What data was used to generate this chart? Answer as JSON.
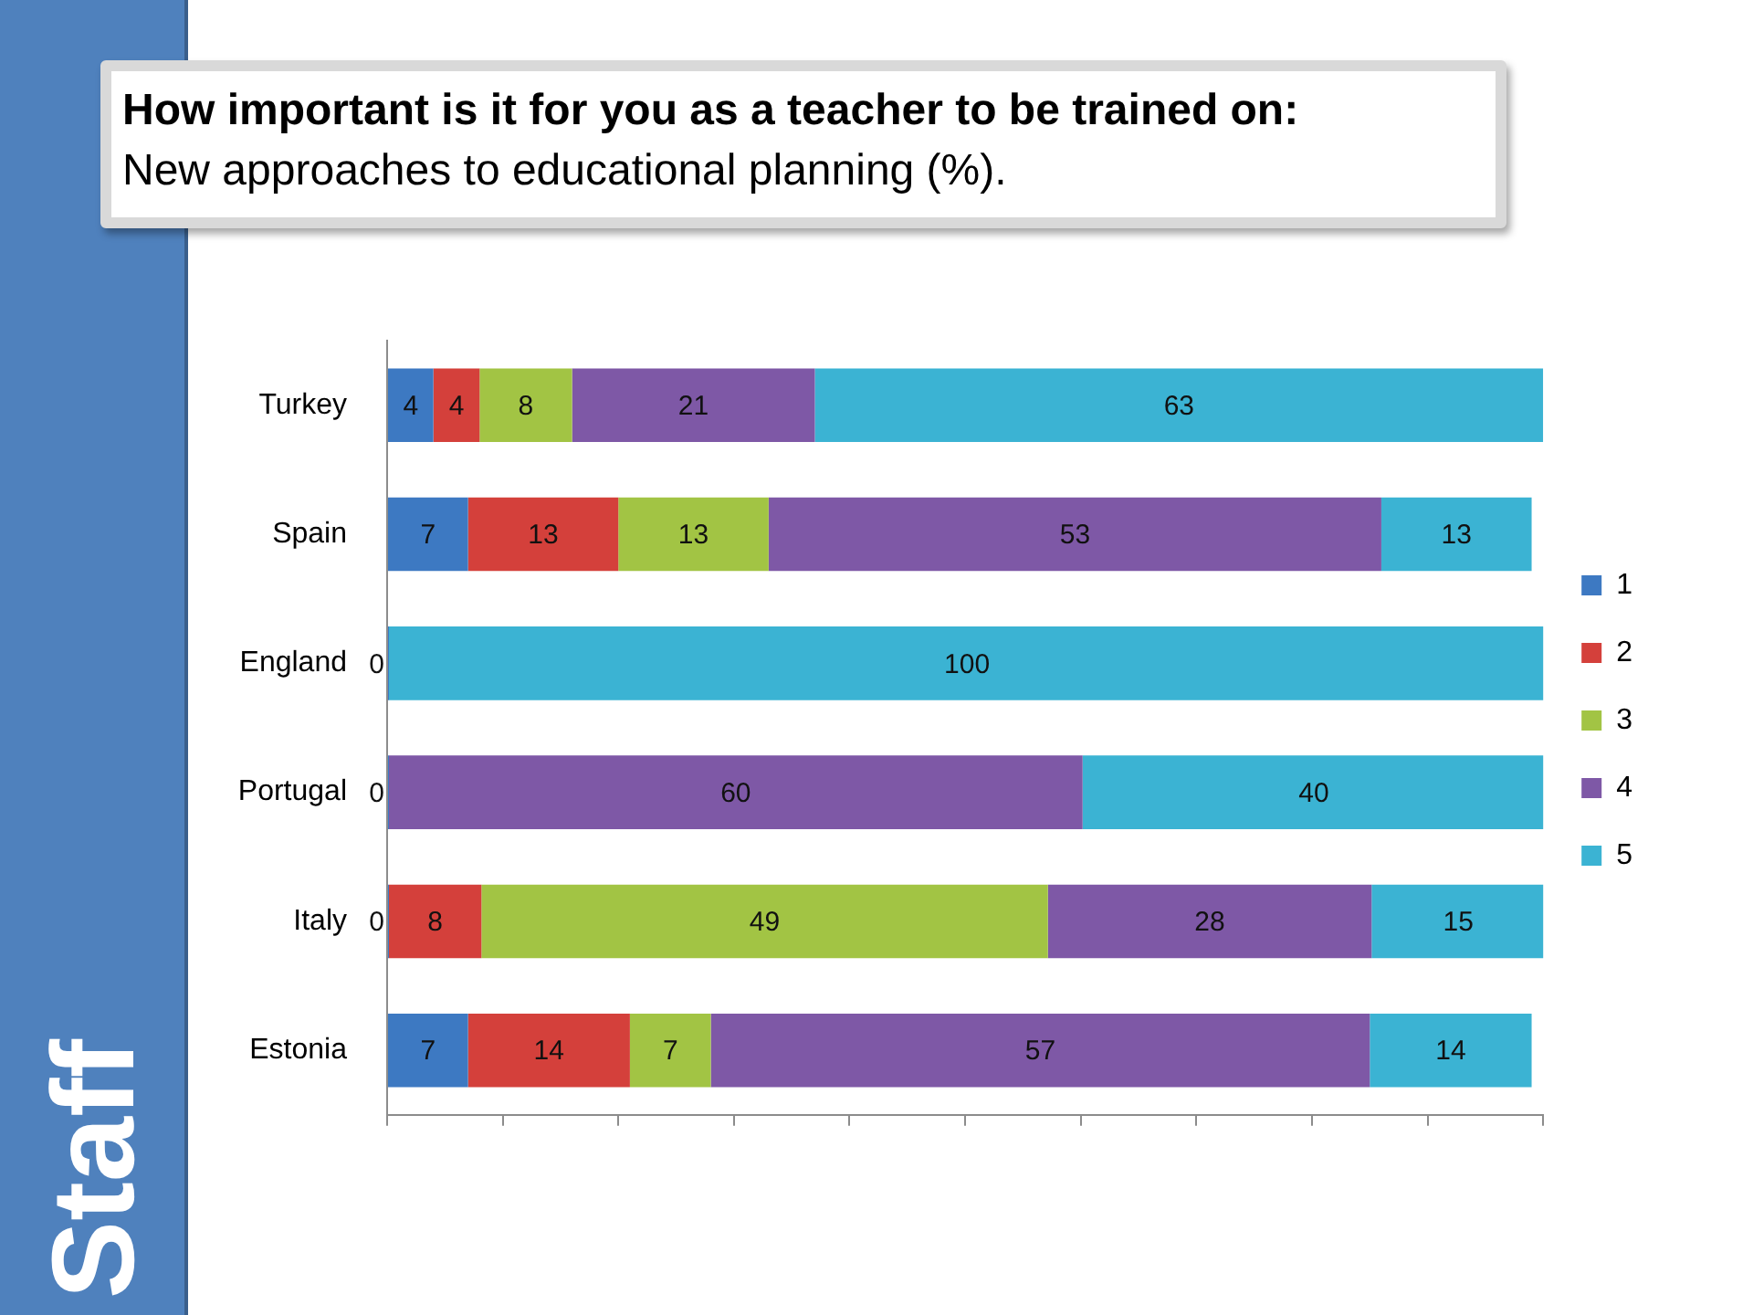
{
  "chart_data": {
    "type": "bar",
    "orientation": "horizontal",
    "stacked": true,
    "title": "How important is it for you as a teacher to be trained on:",
    "subtitle": "New approaches to educational planning (%).",
    "categories": [
      "Turkey",
      "Spain",
      "England",
      "Portugal",
      "Italy",
      "Estonia"
    ],
    "series": [
      {
        "name": "1",
        "color": "#3d79c2",
        "values": [
          4,
          7,
          0,
          0,
          0,
          7
        ],
        "value_labels": [
          "4",
          "7",
          "0",
          "0",
          "0",
          "7"
        ]
      },
      {
        "name": "2",
        "color": "#d4403b",
        "values": [
          4,
          13,
          0,
          0,
          8,
          14
        ],
        "value_labels": [
          "4",
          "13",
          null,
          null,
          "8",
          "14"
        ]
      },
      {
        "name": "3",
        "color": "#a2c444",
        "values": [
          8,
          13,
          0,
          0,
          49,
          7
        ],
        "value_labels": [
          "8",
          "13",
          null,
          null,
          "49",
          "7"
        ]
      },
      {
        "name": "4",
        "color": "#7e58a6",
        "values": [
          21,
          53,
          0,
          60,
          28,
          57
        ],
        "value_labels": [
          "21",
          "53",
          null,
          "60",
          "28",
          "57"
        ]
      },
      {
        "name": "5",
        "color": "#3bb3d3",
        "values": [
          63,
          13,
          100,
          40,
          15,
          14
        ],
        "value_labels": [
          "63",
          "13",
          "100",
          "40",
          "15",
          "14"
        ]
      }
    ],
    "xlim": [
      0,
      100
    ],
    "xticks": [
      {
        "value": 0,
        "label": null
      },
      {
        "value": 10,
        "label": null
      },
      {
        "value": 20,
        "label": null
      },
      {
        "value": 30,
        "label": null
      },
      {
        "value": 40,
        "label": null
      },
      {
        "value": 50,
        "label": null
      },
      {
        "value": 60,
        "label": null
      },
      {
        "value": 70,
        "label": null
      },
      {
        "value": 80,
        "label": null
      },
      {
        "value": 90,
        "label": null
      },
      {
        "value": 100,
        "label": null
      }
    ],
    "tick_labels": "y",
    "grid": false,
    "legend": "right",
    "annotations": [
      "Staff"
    ]
  }
}
